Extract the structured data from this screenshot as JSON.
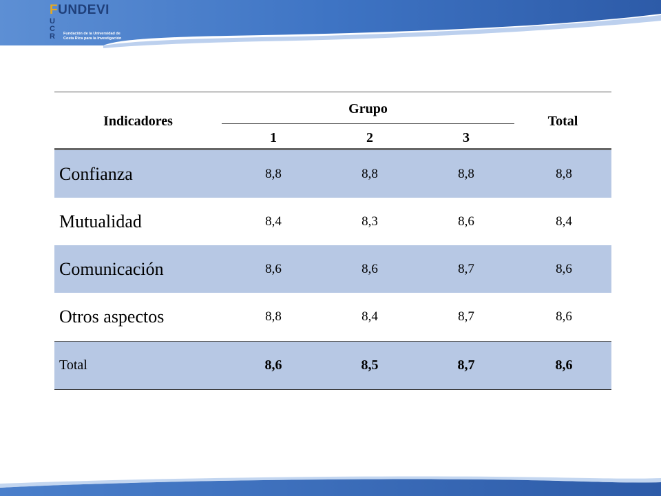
{
  "logo": {
    "name": "FUNDEVI",
    "ucr": "UCR",
    "tagline": "Fundación de la Universidad de Costa Rica para la Investigación"
  },
  "table": {
    "header": {
      "indicadores": "Indicadores",
      "grupo": "Grupo",
      "total": "Total",
      "groups": [
        "1",
        "2",
        "3"
      ]
    },
    "rows": [
      {
        "label": "Confianza",
        "values": [
          "8,8",
          "8,8",
          "8,8"
        ],
        "total": "8,8"
      },
      {
        "label": "Mutualidad",
        "values": [
          "8,4",
          "8,3",
          "8,6"
        ],
        "total": "8,4"
      },
      {
        "label": "Comunicación",
        "values": [
          "8,6",
          "8,6",
          "8,7"
        ],
        "total": "8,6"
      },
      {
        "label": "Otros aspectos",
        "values": [
          "8,8",
          "8,4",
          "8,7"
        ],
        "total": "8,6"
      },
      {
        "label": "Total",
        "values": [
          "8,6",
          "8,5",
          "8,7"
        ],
        "total": "8,6"
      }
    ]
  },
  "colors": {
    "banner": "#2f64b3",
    "row_highlight": "#b7c8e4",
    "logo_accent": "#e7a91e"
  }
}
